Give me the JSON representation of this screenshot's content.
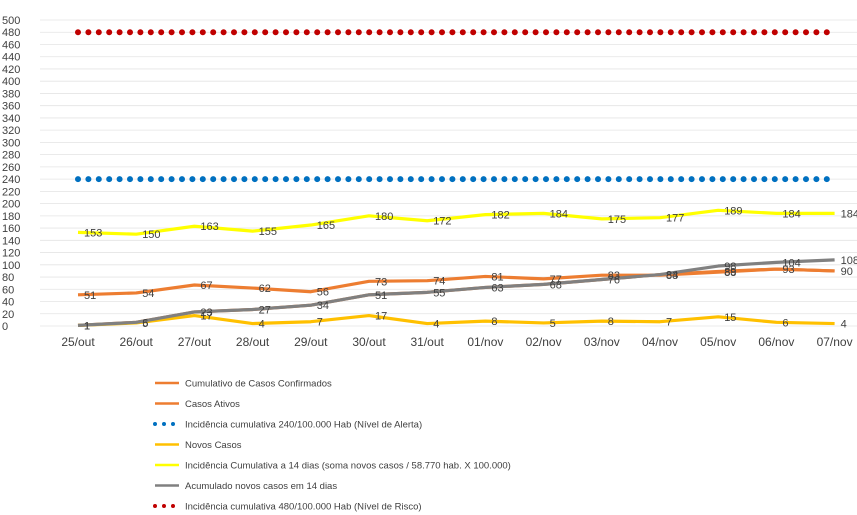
{
  "chart_data": {
    "type": "line",
    "categories": [
      "25/out",
      "26/out",
      "27/out",
      "28/out",
      "29/out",
      "30/out",
      "31/out",
      "01/nov",
      "02/nov",
      "03/nov",
      "04/nov",
      "05/nov",
      "06/nov",
      "07/nov"
    ],
    "ylim": [
      0,
      500
    ],
    "ytick_step": 20,
    "grid": true,
    "legend_position": "bottom",
    "series": [
      {
        "name": "Cumulativo de Casos Confirmados",
        "color": "#ed7d31",
        "style": "line",
        "values": [
          1,
          6,
          23,
          27,
          34,
          51,
          55,
          63,
          68,
          76,
          84,
          89,
          93,
          90
        ],
        "labels": [
          "1",
          "6",
          "",
          "",
          "",
          "",
          "",
          "",
          "",
          "",
          "",
          "89",
          "93",
          ""
        ]
      },
      {
        "name": "Casos Ativos",
        "color": "#ed7d31",
        "style": "line",
        "values": [
          51,
          54,
          67,
          62,
          56,
          73,
          74,
          81,
          77,
          83,
          83,
          88,
          93,
          90
        ],
        "labels": [
          "51",
          "54",
          "67",
          "62",
          "56",
          "73",
          "74",
          "81",
          "77",
          "83",
          "83",
          "88",
          "",
          "90"
        ]
      },
      {
        "name": "Incidência cumulativa 240/100.000 Hab (Nível de Alerta)",
        "color": "#0070c0",
        "style": "dotted",
        "values": [
          240,
          240,
          240,
          240,
          240,
          240,
          240,
          240,
          240,
          240,
          240,
          240,
          240,
          240
        ],
        "labels": []
      },
      {
        "name": "Novos Casos",
        "color": "#ffc000",
        "style": "line",
        "values": [
          1,
          5,
          17,
          4,
          7,
          17,
          4,
          8,
          5,
          8,
          7,
          15,
          6,
          4
        ],
        "labels": [
          "1",
          "5",
          "17",
          "4",
          "7",
          "17",
          "4",
          "8",
          "5",
          "8",
          "7",
          "15",
          "6",
          "4"
        ]
      },
      {
        "name": "Incidência Cumulativa a 14 dias (soma novos casos / 58.770 hab. X 100.000)",
        "color": "#ffff00",
        "style": "line",
        "values": [
          153,
          150,
          163,
          155,
          165,
          180,
          172,
          182,
          184,
          175,
          177,
          189,
          184,
          184
        ],
        "labels": [
          "153",
          "150",
          "163",
          "155",
          "165",
          "180",
          "172",
          "182",
          "184",
          "175",
          "177",
          "189",
          "184",
          "184"
        ]
      },
      {
        "name": "Acumulado novos casos em 14 dias",
        "color": "#808080",
        "style": "line",
        "values": [
          1,
          6,
          23,
          27,
          34,
          51,
          55,
          63,
          68,
          76,
          84,
          98,
          104,
          108
        ],
        "labels": [
          "",
          "",
          "23",
          "27",
          "34",
          "51",
          "55",
          "63",
          "68",
          "76",
          "84",
          "98",
          "104",
          "108"
        ]
      },
      {
        "name": "Incidência cumulativa 480/100.000 Hab (Nível de Risco)",
        "color": "#c00000",
        "style": "dotted",
        "values": [
          480,
          480,
          480,
          480,
          480,
          480,
          480,
          480,
          480,
          480,
          480,
          480,
          480,
          480
        ],
        "labels": []
      }
    ]
  }
}
